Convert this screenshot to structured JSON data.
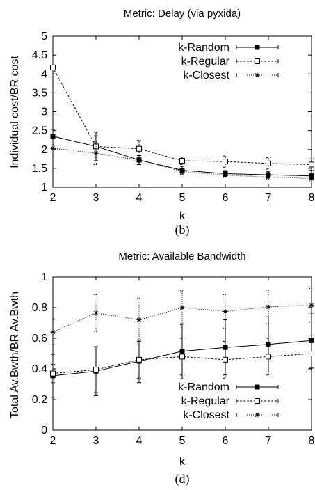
{
  "chart_data": [
    {
      "type": "line",
      "title": "Metric: Delay (via pyxida)",
      "xlabel": "k",
      "ylabel": "Individual cost/BR cost",
      "caption": "(b)",
      "xlim": [
        2,
        8
      ],
      "ylim": [
        1,
        5
      ],
      "xticks": [
        "2",
        "3",
        "4",
        "5",
        "6",
        "7",
        "8"
      ],
      "yticks": [
        "1",
        "1.5",
        "2",
        "2.5",
        "3",
        "3.5",
        "4",
        "4.5",
        "5"
      ],
      "grid": false,
      "legend_position": "top-right",
      "x": [
        2,
        3,
        4,
        5,
        6,
        7,
        8
      ],
      "series": [
        {
          "name": "k-Random",
          "marker": "filled-square",
          "line": "solid",
          "values": [
            2.35,
            2.08,
            1.72,
            1.45,
            1.36,
            1.33,
            1.3
          ],
          "err": [
            0.18,
            0.38,
            0.12,
            0.1,
            0.08,
            0.08,
            0.08
          ]
        },
        {
          "name": "k-Regular",
          "marker": "open-square",
          "line": "dashed",
          "values": [
            4.17,
            2.08,
            2.02,
            1.7,
            1.68,
            1.63,
            1.6
          ],
          "err": [
            0.12,
            0.28,
            0.22,
            0.1,
            0.15,
            0.15,
            0.15
          ]
        },
        {
          "name": "k-Closest",
          "marker": "star",
          "line": "dotted",
          "values": [
            2.03,
            1.9,
            1.72,
            1.42,
            1.32,
            1.27,
            1.23
          ],
          "err": [
            0.1,
            0.3,
            0.12,
            0.08,
            0.06,
            0.06,
            0.06
          ]
        }
      ]
    },
    {
      "type": "line",
      "title": "Metric: Available Bandwidth",
      "xlabel": "k",
      "ylabel": "Total Av.Bwth/BR Av.Bwth",
      "caption": "(d)",
      "xlim": [
        2,
        8
      ],
      "ylim": [
        0,
        1
      ],
      "xticks": [
        "2",
        "3",
        "4",
        "5",
        "6",
        "7",
        "8"
      ],
      "yticks": [
        "0",
        "0.2",
        "0.4",
        "0.6",
        "0.8",
        "1"
      ],
      "grid": false,
      "legend_position": "bottom-right",
      "x": [
        2,
        3,
        4,
        5,
        6,
        7,
        8
      ],
      "series": [
        {
          "name": "k-Random",
          "marker": "filled-square",
          "line": "solid",
          "values": [
            0.355,
            0.385,
            0.45,
            0.515,
            0.54,
            0.56,
            0.585
          ],
          "err": [
            0.14,
            0.16,
            0.14,
            0.18,
            0.18,
            0.18,
            0.18
          ]
        },
        {
          "name": "k-Regular",
          "marker": "open-square",
          "line": "dashed",
          "values": [
            0.37,
            0.395,
            0.46,
            0.48,
            0.46,
            0.48,
            0.5
          ],
          "err": [
            0.06,
            0.15,
            0.12,
            0.12,
            0.12,
            0.12,
            0.12
          ]
        },
        {
          "name": "k-Closest",
          "marker": "star",
          "line": "dotted",
          "values": [
            0.64,
            0.765,
            0.72,
            0.8,
            0.775,
            0.805,
            0.815
          ],
          "err": [
            0.08,
            0.12,
            0.14,
            0.11,
            0.11,
            0.11,
            0.11
          ]
        }
      ]
    }
  ]
}
